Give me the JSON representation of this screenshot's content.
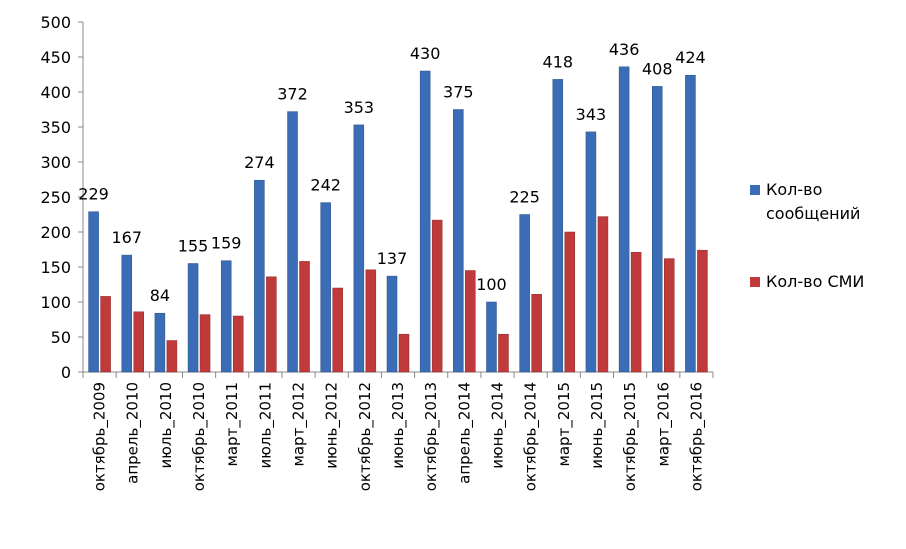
{
  "chart_data": {
    "type": "bar",
    "categories": [
      "октябрь_2009",
      "апрель_2010",
      "июль_2010",
      "октябрь_2010",
      "март_2011",
      "июль_2011",
      "март_2012",
      "июнь_2012",
      "октябрь_2012",
      "июнь_2013",
      "октябрь_2013",
      "апрель_2014",
      "июнь_2014",
      "октябрь_2014",
      "март_2015",
      "июнь_2015",
      "октябрь_2015",
      "март_2016",
      "октябрь_2016"
    ],
    "series": [
      {
        "name": "Кол-во сообщений",
        "color": "#3a6db5",
        "values": [
          229,
          167,
          84,
          155,
          159,
          274,
          372,
          242,
          353,
          137,
          430,
          375,
          100,
          225,
          418,
          343,
          436,
          408,
          424
        ],
        "labels": [
          "229",
          "167",
          "84",
          "155",
          "159",
          "274",
          "372",
          "242",
          "353",
          "137",
          "430",
          "375",
          "100",
          "225",
          "418",
          "343",
          "436",
          "408",
          "424"
        ]
      },
      {
        "name": "Кол-во СМИ",
        "color": "#c0393b",
        "values": [
          108,
          86,
          45,
          82,
          80,
          136,
          158,
          120,
          146,
          54,
          217,
          145,
          54,
          111,
          200,
          222,
          171,
          162,
          174
        ]
      }
    ],
    "ylim": [
      0,
      500
    ],
    "yticks": [
      0,
      50,
      100,
      150,
      200,
      250,
      300,
      350,
      400,
      450,
      500
    ],
    "ytick_labels": [
      "0",
      "50",
      "100",
      "150",
      "200",
      "250",
      "300",
      "350",
      "400",
      "450",
      "500"
    ],
    "grid": false,
    "legend_position": "right",
    "title": "",
    "xlabel": "",
    "ylabel": ""
  },
  "legend": {
    "items": [
      {
        "label": "Кол-во сообщений",
        "color": "#3a6db5"
      },
      {
        "label": "Кол-во СМИ",
        "color": "#c0393b"
      }
    ]
  }
}
